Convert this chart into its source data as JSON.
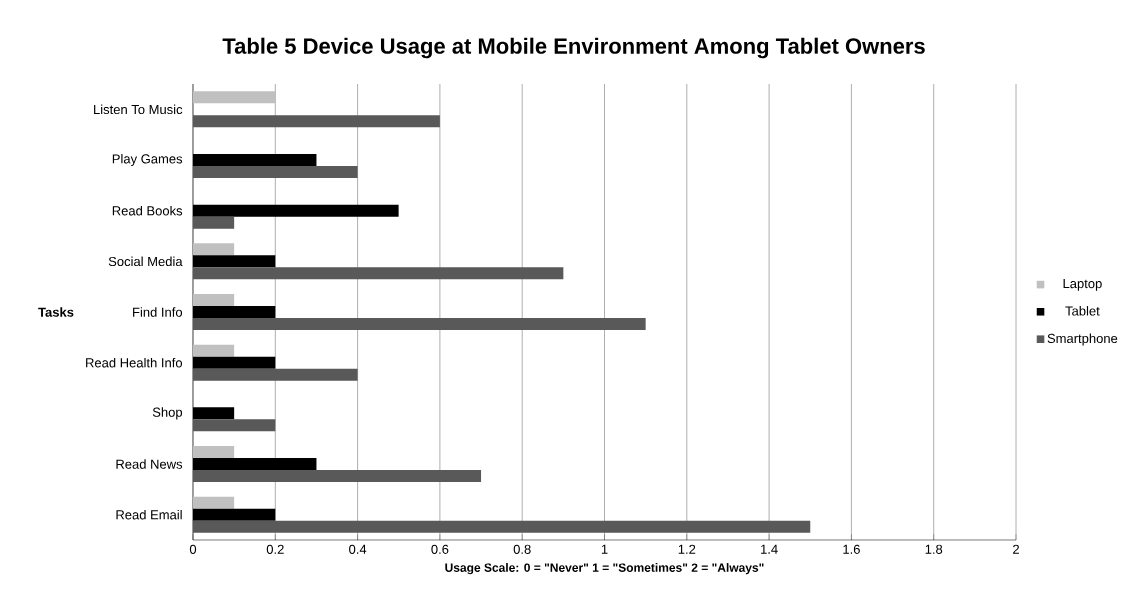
{
  "chart_data": {
    "type": "bar",
    "orientation": "horizontal",
    "title": "Table 5 Device Usage at Mobile Environment Among Tablet Owners",
    "xlabel": "Usage Scale: 0 = \"Never\"  1 = \"Sometimes\"  2 = \"Always\"",
    "ylabel": "Tasks",
    "categories": [
      "Listen To Music",
      "Play Games",
      "Read Books",
      "Social Media",
      "Find Info",
      "Read Health Info",
      "Shop",
      "Read News",
      "Read Email"
    ],
    "series": [
      {
        "name": "Laptop",
        "color": "#c0c0c0",
        "values": [
          0.2,
          0,
          0,
          0.1,
          0.1,
          0.1,
          0,
          0.1,
          0.1
        ]
      },
      {
        "name": "Tablet",
        "color": "#000000",
        "values": [
          0,
          0.3,
          0.5,
          0.2,
          0.2,
          0.2,
          0.1,
          0.3,
          0.2
        ]
      },
      {
        "name": "Smartphone",
        "color": "#595959",
        "values": [
          0.6,
          0.4,
          0.1,
          0.9,
          1.1,
          0.4,
          0.2,
          0.7,
          1.5
        ]
      }
    ],
    "xlim": [
      0,
      2
    ],
    "xticks": [
      0,
      0.2,
      0.4,
      0.6,
      0.8,
      1,
      1.2,
      1.4,
      1.6,
      1.8,
      2
    ],
    "grid": "x",
    "legend": "right"
  }
}
